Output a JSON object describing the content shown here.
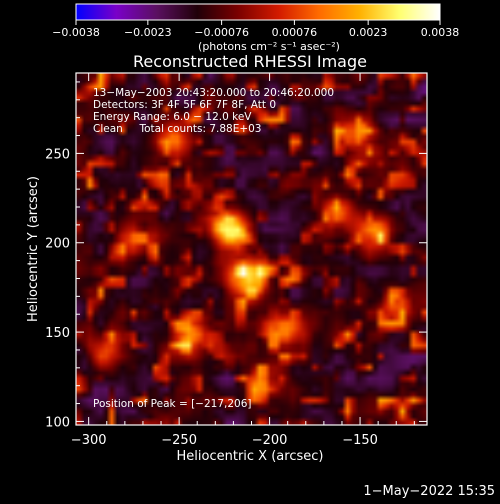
{
  "chart_data": {
    "type": "heatmap",
    "title": "Reconstructed RHESSI Image",
    "xlabel": "Heliocentric X (arcsec)",
    "ylabel": "Heliocentric Y (arcsec)",
    "xlim": [
      -307,
      -113
    ],
    "ylim": [
      98,
      295
    ],
    "x_ticks": [
      {
        "value": -300,
        "label": "−300"
      },
      {
        "value": -250,
        "label": "−250"
      },
      {
        "value": -200,
        "label": "−200"
      },
      {
        "value": -150,
        "label": "−150"
      }
    ],
    "y_ticks": [
      {
        "value": 100,
        "label": "100"
      },
      {
        "value": 150,
        "label": "150"
      },
      {
        "value": 200,
        "label": "200"
      },
      {
        "value": 250,
        "label": "250"
      }
    ],
    "annotations": [
      "13−May−2003 20:43:20.000 to 20:46:20.000",
      "Detectors: 3F 4F 5F 6F 7F 8F, Att 0",
      "Energy Range: 6.0 − 12.0 keV",
      "Clean     Total counts: 7.88E+03"
    ],
    "peak_label": "Position of Peak = [−217,206]",
    "peak_position": [
      -217,
      206
    ],
    "colorbar": {
      "range": [
        -0.0038,
        0.0038
      ],
      "ticks": [
        {
          "value": -0.0038,
          "label": "−0.0038"
        },
        {
          "value": -0.0023,
          "label": "−0.0023"
        },
        {
          "value": -0.00076,
          "label": "−0.00076"
        },
        {
          "value": 0.00076,
          "label": "0.00076"
        },
        {
          "value": 0.0023,
          "label": "0.0023"
        },
        {
          "value": 0.0038,
          "label": "0.0038"
        }
      ],
      "unit_label": "(photons cm⁻² s⁻¹ asec⁻²)",
      "colors": [
        "#0000ff",
        "#7a00c8",
        "#5a1060",
        "#200008",
        "#7a0000",
        "#d21a00",
        "#ff6a00",
        "#ffb000",
        "#ffff70",
        "#ffffff"
      ]
    },
    "sources": [
      {
        "x": -222,
        "y": 208,
        "peak": 1.0
      },
      {
        "x": -212,
        "y": 180,
        "peak": 0.95
      },
      {
        "x": -243,
        "y": 148,
        "peak": 0.7
      },
      {
        "x": -190,
        "y": 150,
        "peak": 0.6
      },
      {
        "x": -165,
        "y": 215,
        "peak": 0.55
      },
      {
        "x": -140,
        "y": 205,
        "peak": 0.6
      },
      {
        "x": -272,
        "y": 200,
        "peak": 0.5
      },
      {
        "x": -290,
        "y": 140,
        "peak": 0.5
      },
      {
        "x": -255,
        "y": 260,
        "peak": 0.5
      },
      {
        "x": -150,
        "y": 262,
        "peak": 0.45
      },
      {
        "x": -128,
        "y": 165,
        "peak": 0.5
      },
      {
        "x": -200,
        "y": 120,
        "peak": 0.45
      }
    ]
  },
  "footer": {
    "timestamp": "1−May−2022 15:35"
  }
}
